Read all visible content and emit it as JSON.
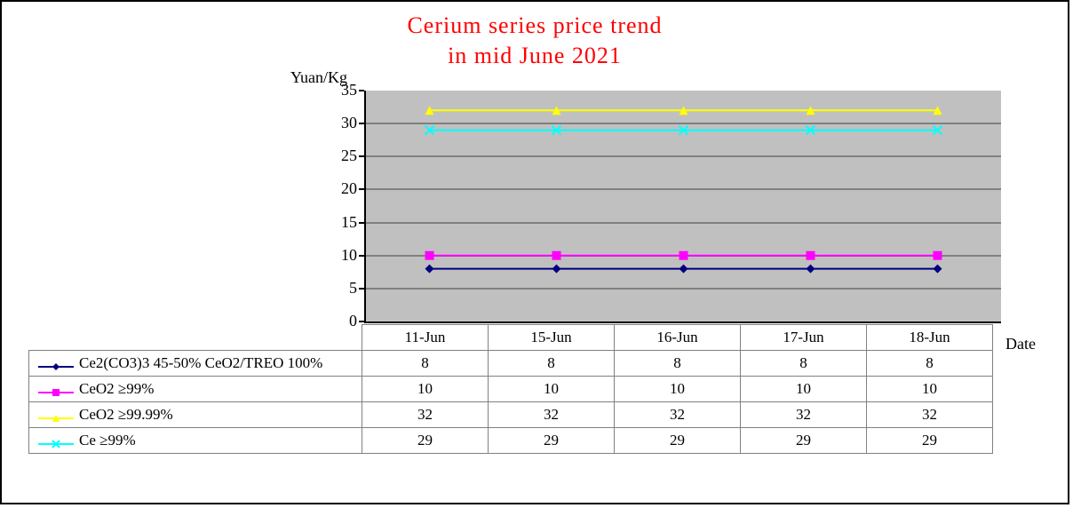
{
  "chart": {
    "type": "line",
    "title_line1": "Cerium series price trend",
    "title_line2": "in mid June 2021",
    "title_color": "#ff0000",
    "title_fontsize": 26,
    "ylabel": "Yuan/Kg",
    "xlabel": "Date",
    "background_color": "#c0c0c0",
    "grid_color": "#808080",
    "ylim": [
      0,
      35
    ],
    "ytick_step": 5,
    "yticks": [
      0,
      5,
      10,
      15,
      20,
      25,
      30,
      35
    ],
    "categories": [
      "11-Jun",
      "15-Jun",
      "16-Jun",
      "17-Jun",
      "18-Jun"
    ],
    "series": [
      {
        "name": "Ce2(CO3)3 45-50% CeO2/TREO 100%",
        "values": [
          8,
          8,
          8,
          8,
          8
        ],
        "color": "#000080",
        "marker": "diamond"
      },
      {
        "name": "CeO2 ≥99%",
        "values": [
          10,
          10,
          10,
          10,
          10
        ],
        "color": "#ff00ff",
        "marker": "square"
      },
      {
        "name": "CeO2 ≥99.99%",
        "values": [
          32,
          32,
          32,
          32,
          32
        ],
        "color": "#ffff00",
        "marker": "triangle"
      },
      {
        "name": "Ce  ≥99%",
        "values": [
          29,
          29,
          29,
          29,
          29
        ],
        "color": "#00ffff",
        "marker": "x"
      }
    ]
  }
}
